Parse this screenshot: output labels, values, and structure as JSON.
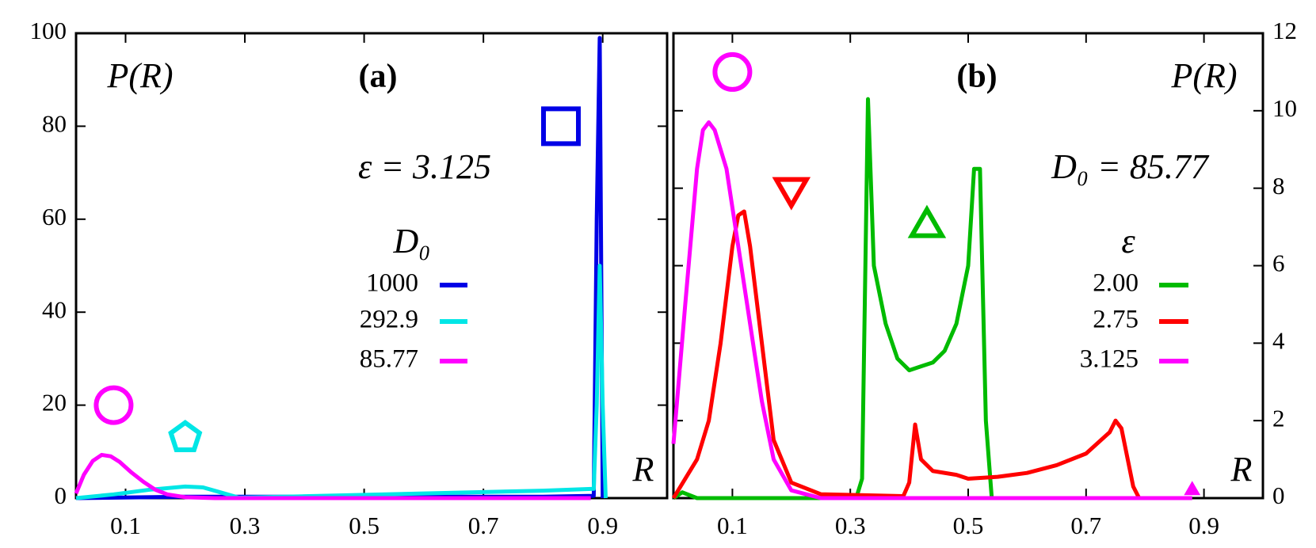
{
  "chart_data": [
    {
      "type": "line",
      "title": "(a)",
      "xlabel": "R",
      "ylabel": "P(R)",
      "annotation": "ε = 3.125",
      "legend_title": "D₀",
      "xlim": [
        0.017,
        1.008
      ],
      "xticks": [
        0.1,
        0.3,
        0.5,
        0.7,
        0.9
      ],
      "ylim": [
        0,
        100
      ],
      "yticks": [
        0,
        20,
        40,
        60,
        80,
        100
      ],
      "series": [
        {
          "name": "1000",
          "color": "#0000e6",
          "x": [
            0.017,
            0.2,
            0.4,
            0.6,
            0.8,
            0.885,
            0.89,
            0.895,
            0.9
          ],
          "values": [
            0,
            0.3,
            0.3,
            0.3,
            0.3,
            0.5,
            60,
            99,
            0
          ]
        },
        {
          "name": "292.9",
          "color": "#00e6e6",
          "x": [
            0.017,
            0.08,
            0.14,
            0.2,
            0.23,
            0.26,
            0.29,
            0.4,
            0.6,
            0.8,
            0.885,
            0.89,
            0.895,
            0.9,
            0.905
          ],
          "values": [
            0,
            0.8,
            1.8,
            2.5,
            2.3,
            1.2,
            0.1,
            0.4,
            1,
            1.6,
            2,
            20,
            50,
            20,
            0
          ]
        },
        {
          "name": "85.77",
          "color": "#ff00ff",
          "x": [
            0.017,
            0.03,
            0.045,
            0.06,
            0.075,
            0.09,
            0.11,
            0.13,
            0.15,
            0.17,
            0.2,
            0.25,
            0.4,
            0.6,
            0.88
          ],
          "values": [
            1,
            5,
            8,
            9.3,
            9,
            7.8,
            5.5,
            3.5,
            1.8,
            0.8,
            0.2,
            0,
            0,
            0,
            0
          ]
        }
      ],
      "markers": [
        {
          "shape": "circle",
          "color": "#ff00ff",
          "x": 0.08,
          "y": 20
        },
        {
          "shape": "pentagon",
          "color": "#00e6e6",
          "x": 0.2,
          "y": 13
        },
        {
          "shape": "square",
          "color": "#0000e6",
          "x": 0.83,
          "y": 80
        }
      ]
    },
    {
      "type": "line",
      "title": "(b)",
      "xlabel": "R",
      "ylabel": "P(R)",
      "annotation": "D₀ = 85.77",
      "legend_title": "ε",
      "xlim": [
        0,
        1
      ],
      "xticks": [
        0.1,
        0.3,
        0.5,
        0.7,
        0.9
      ],
      "y2lim": [
        0,
        12
      ],
      "y2ticks": [
        0,
        2,
        4,
        6,
        8,
        10,
        12
      ],
      "series": [
        {
          "name": "2.00",
          "color": "#00bb00",
          "axis": "y2",
          "x": [
            0,
            0.015,
            0.04,
            0.31,
            0.32,
            0.33,
            0.34,
            0.36,
            0.38,
            0.4,
            0.42,
            0.44,
            0.46,
            0.48,
            0.5,
            0.51,
            0.52,
            0.53,
            0.54
          ],
          "values": [
            0,
            0.15,
            0,
            0,
            0.5,
            10.3,
            6,
            4.5,
            3.6,
            3.3,
            3.4,
            3.5,
            3.8,
            4.5,
            6,
            8.5,
            8.5,
            2,
            0
          ]
        },
        {
          "name": "2.75",
          "color": "#ff0000",
          "axis": "y2",
          "x": [
            0,
            0.02,
            0.04,
            0.06,
            0.08,
            0.1,
            0.11,
            0.12,
            0.13,
            0.15,
            0.17,
            0.2,
            0.25,
            0.39,
            0.4,
            0.41,
            0.42,
            0.44,
            0.48,
            0.5,
            0.55,
            0.6,
            0.65,
            0.7,
            0.74,
            0.75,
            0.76,
            0.78,
            0.79
          ],
          "values": [
            0,
            0.5,
            1,
            2,
            4,
            6.5,
            7.3,
            7.4,
            6.5,
            4,
            1.5,
            0.4,
            0.1,
            0.05,
            0.4,
            1.9,
            1,
            0.7,
            0.6,
            0.5,
            0.55,
            0.65,
            0.85,
            1.15,
            1.7,
            2,
            1.8,
            0.3,
            0
          ]
        },
        {
          "name": "3.125",
          "color": "#ff00ff",
          "axis": "y2",
          "x": [
            0,
            0.02,
            0.04,
            0.05,
            0.06,
            0.07,
            0.09,
            0.11,
            0.13,
            0.15,
            0.17,
            0.2,
            0.25,
            0.5,
            0.88
          ],
          "values": [
            1.4,
            5,
            8.5,
            9.5,
            9.7,
            9.5,
            8.5,
            6.5,
            4.5,
            2.5,
            1,
            0.2,
            0,
            0,
            0
          ]
        }
      ],
      "markers": [
        {
          "shape": "circle",
          "color": "#ff00ff",
          "x": 0.1,
          "y": 11
        },
        {
          "shape": "triangle-down",
          "color": "#ff0000",
          "x": 0.2,
          "y": 8
        },
        {
          "shape": "triangle-up",
          "color": "#00bb00",
          "x": 0.43,
          "y": 7
        },
        {
          "shape": "small-triangle-up",
          "color": "#ff00ff",
          "x": 0.88,
          "y": 0.2
        }
      ]
    }
  ]
}
